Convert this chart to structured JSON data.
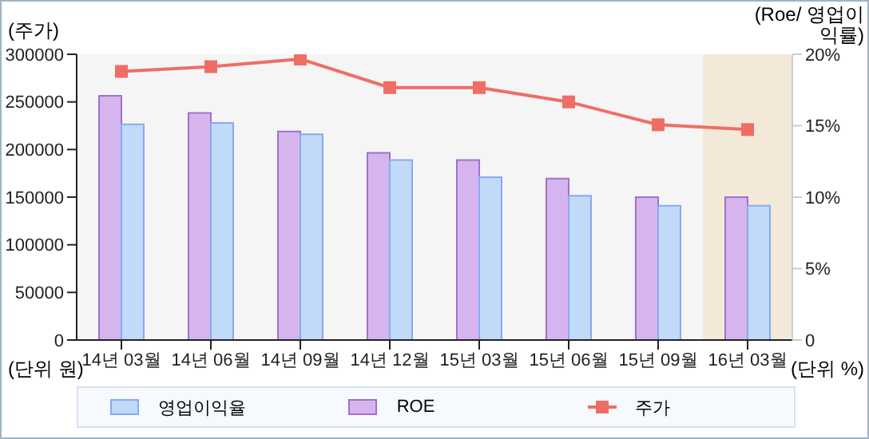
{
  "chart_data": {
    "type": "bar",
    "categories": [
      "14년 03월",
      "14년 06월",
      "14년 09월",
      "14년 12월",
      "15년 03월",
      "15년 06월",
      "15년 09월",
      "16년 03월"
    ],
    "series": [
      {
        "name": "영업이익율",
        "axis": "y2",
        "color": "#c0daf8",
        "values": [
          15.1,
          15.2,
          14.4,
          12.6,
          11.4,
          10.1,
          9.4,
          9.4
        ]
      },
      {
        "name": "ROE",
        "axis": "y2",
        "color": "#d6b5ee",
        "values": [
          17.1,
          15.9,
          14.6,
          13.1,
          12.6,
          11.3,
          10.0,
          10.0
        ]
      },
      {
        "name": "주가",
        "type": "line",
        "axis": "y",
        "color": "#ee6e66",
        "marker": "square",
        "values": [
          282000,
          287000,
          295000,
          265000,
          265000,
          250000,
          226000,
          221000
        ]
      }
    ],
    "ylabel": "(주가)",
    "y2label": "(Roe/ 영업이익률)",
    "ylim": [
      0,
      300000
    ],
    "yticks": [
      0,
      50000,
      100000,
      150000,
      200000,
      250000,
      300000
    ],
    "y2lim": [
      0,
      20
    ],
    "y2ticks": [
      {
        "value": 0,
        "label": "0"
      },
      {
        "value": 5,
        "label": "5%"
      },
      {
        "value": 10,
        "label": "10%"
      },
      {
        "value": 15,
        "label": "15%"
      },
      {
        "value": 20,
        "label": "20%"
      }
    ],
    "bands": [
      {
        "axis": "x",
        "from": "16년 03월",
        "to": "16년 03월",
        "color": "#f3e9d9"
      }
    ],
    "annotations": [
      "(단위 원)",
      "(단위 %)"
    ],
    "grid": false,
    "legend": "bottom"
  }
}
